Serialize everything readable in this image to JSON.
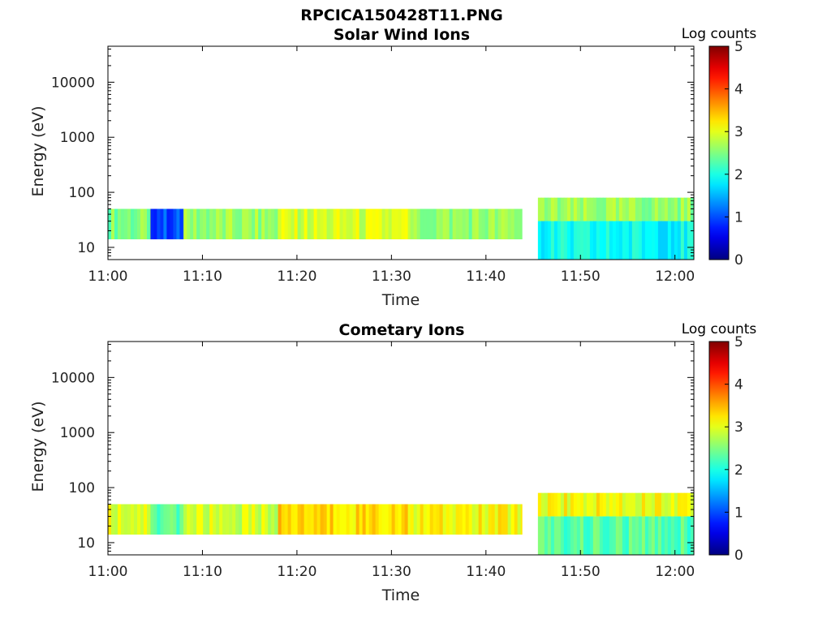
{
  "figure": {
    "title": "RPCICA150428T11.PNG"
  },
  "chart_data": [
    {
      "type": "heatmap",
      "title": "Solar Wind Ions",
      "xlabel": "Time",
      "ylabel": "Energy (eV)",
      "x_ticks": [
        "11:00",
        "11:10",
        "11:20",
        "11:30",
        "11:40",
        "11:50",
        "12:00"
      ],
      "y_ticks": [
        "10",
        "100",
        "1000",
        "10000"
      ],
      "y_scale": "log",
      "xlim_minutes": [
        0,
        62
      ],
      "ylim_eV": [
        6,
        45000
      ],
      "colorbar": {
        "label": "Log counts",
        "range": [
          0,
          5
        ],
        "ticks": [
          "0",
          "1",
          "2",
          "3",
          "4",
          "5"
        ],
        "colormap": "jet"
      },
      "segments": [
        {
          "t_start_min": 0.0,
          "t_end_min": 4.5,
          "e_min_eV": 14,
          "e_max_eV": 50,
          "log_counts": 2.5
        },
        {
          "t_start_min": 4.5,
          "t_end_min": 8.0,
          "e_min_eV": 14,
          "e_max_eV": 50,
          "log_counts": 1.0
        },
        {
          "t_start_min": 8.0,
          "t_end_min": 18.0,
          "e_min_eV": 14,
          "e_max_eV": 50,
          "log_counts": 2.6
        },
        {
          "t_start_min": 18.0,
          "t_end_min": 32.0,
          "e_min_eV": 14,
          "e_max_eV": 50,
          "log_counts": 2.9
        },
        {
          "t_start_min": 32.0,
          "t_end_min": 43.8,
          "e_min_eV": 14,
          "e_max_eV": 50,
          "log_counts": 2.6
        },
        {
          "t_start_min": 45.5,
          "t_end_min": 62.0,
          "e_min_eV": 30,
          "e_max_eV": 80,
          "log_counts": 2.6
        },
        {
          "t_start_min": 45.5,
          "t_end_min": 62.0,
          "e_min_eV": 6,
          "e_max_eV": 30,
          "log_counts": 1.9
        }
      ]
    },
    {
      "type": "heatmap",
      "title": "Cometary Ions",
      "xlabel": "Time",
      "ylabel": "Energy (eV)",
      "x_ticks": [
        "11:00",
        "11:10",
        "11:20",
        "11:30",
        "11:40",
        "11:50",
        "12:00"
      ],
      "y_ticks": [
        "10",
        "100",
        "1000",
        "10000"
      ],
      "y_scale": "log",
      "xlim_minutes": [
        0,
        62
      ],
      "ylim_eV": [
        6,
        45000
      ],
      "colorbar": {
        "label": "Log counts",
        "range": [
          0,
          5
        ],
        "ticks": [
          "0",
          "1",
          "2",
          "3",
          "4",
          "5"
        ],
        "colormap": "jet"
      },
      "segments": [
        {
          "t_start_min": 0.0,
          "t_end_min": 4.5,
          "e_min_eV": 14,
          "e_max_eV": 50,
          "log_counts": 3.0
        },
        {
          "t_start_min": 4.5,
          "t_end_min": 8.0,
          "e_min_eV": 14,
          "e_max_eV": 50,
          "log_counts": 2.3
        },
        {
          "t_start_min": 8.0,
          "t_end_min": 18.0,
          "e_min_eV": 14,
          "e_max_eV": 50,
          "log_counts": 2.9
        },
        {
          "t_start_min": 18.0,
          "t_end_min": 32.0,
          "e_min_eV": 14,
          "e_max_eV": 50,
          "log_counts": 3.3
        },
        {
          "t_start_min": 32.0,
          "t_end_min": 43.8,
          "e_min_eV": 14,
          "e_max_eV": 50,
          "log_counts": 3.1
        },
        {
          "t_start_min": 45.5,
          "t_end_min": 62.0,
          "e_min_eV": 30,
          "e_max_eV": 80,
          "log_counts": 3.1
        },
        {
          "t_start_min": 45.5,
          "t_end_min": 62.0,
          "e_min_eV": 6,
          "e_max_eV": 30,
          "log_counts": 2.3
        }
      ]
    }
  ]
}
